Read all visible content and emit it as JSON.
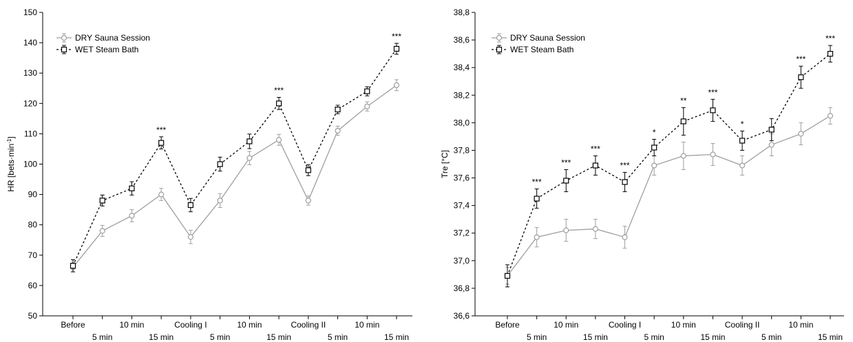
{
  "chart_data": [
    {
      "type": "line",
      "ylabel": "HR [bets·min",
      "ylabel_sup": "-1",
      "ylabel_end": "]",
      "ylim": [
        50,
        150
      ],
      "yticks": [
        50,
        60,
        70,
        80,
        90,
        100,
        110,
        120,
        130,
        140,
        150
      ],
      "ytick_labels": [
        "50",
        "60",
        "70",
        "80",
        "90",
        "100",
        "110",
        "120",
        "130",
        "140",
        "150"
      ],
      "categories": [
        "Before",
        "5 min",
        "10 min",
        "15 min",
        "Cooling I",
        "5 min",
        "10 min",
        "15 min",
        "Cooling II",
        "5 min",
        "10 min",
        "15 min"
      ],
      "grid": false,
      "legend_position": "top-left",
      "series": [
        {
          "name": "DRY Sauna Session",
          "color": "#9e9e9e",
          "line_style": "solid",
          "marker": "circle",
          "values": [
            66,
            78,
            83,
            90,
            76,
            88,
            102,
            108,
            88,
            111,
            119,
            126
          ],
          "errors": [
            1.5,
            1.8,
            2.0,
            2.0,
            2.2,
            2.3,
            2.2,
            1.8,
            1.5,
            1.5,
            1.5,
            1.8
          ]
        },
        {
          "name": "WET Steam Bath",
          "color": "#000000",
          "line_style": "dashed",
          "marker": "square",
          "values": [
            66.5,
            88,
            92,
            107,
            86.5,
            100,
            107.5,
            120,
            98,
            118,
            124,
            138
          ],
          "errors": [
            2.0,
            1.8,
            2.2,
            2.0,
            2.2,
            2.3,
            2.4,
            2.0,
            1.8,
            1.4,
            1.5,
            1.8
          ]
        }
      ],
      "annotations": [
        {
          "index": 3,
          "text": "***"
        },
        {
          "index": 7,
          "text": "***"
        },
        {
          "index": 11,
          "text": "***"
        }
      ]
    },
    {
      "type": "line",
      "ylabel": "Tre [°C]",
      "ylim": [
        36.6,
        38.8
      ],
      "yticks": [
        36.6,
        36.8,
        37.0,
        37.2,
        37.4,
        37.6,
        37.8,
        38.0,
        38.2,
        38.4,
        38.6,
        38.8
      ],
      "ytick_labels": [
        "36,6",
        "36,8",
        "37,0",
        "37,2",
        "37,4",
        "37,6",
        "37,8",
        "38,0",
        "38,2",
        "38,4",
        "38,6",
        "38,8"
      ],
      "categories": [
        "Before",
        "5 min",
        "10 min",
        "15 min",
        "Cooling I",
        "5 min",
        "10 min",
        "15 min",
        "Cooling II",
        "5 min",
        "10 min",
        "15 min"
      ],
      "grid": false,
      "legend_position": "top-left",
      "series": [
        {
          "name": "DRY Sauna Session",
          "color": "#9e9e9e",
          "line_style": "solid",
          "marker": "circle",
          "values": [
            36.89,
            37.17,
            37.22,
            37.23,
            37.17,
            37.69,
            37.76,
            37.77,
            37.69,
            37.84,
            37.92,
            38.05
          ],
          "errors": [
            0.06,
            0.07,
            0.08,
            0.07,
            0.08,
            0.07,
            0.1,
            0.08,
            0.07,
            0.08,
            0.08,
            0.06
          ]
        },
        {
          "name": "WET Steam Bath",
          "color": "#000000",
          "line_style": "dashed",
          "marker": "square",
          "values": [
            36.89,
            37.45,
            37.58,
            37.69,
            37.57,
            37.82,
            38.01,
            38.09,
            37.87,
            37.95,
            38.33,
            38.5
          ],
          "errors": [
            0.08,
            0.07,
            0.08,
            0.07,
            0.07,
            0.06,
            0.1,
            0.08,
            0.07,
            0.08,
            0.08,
            0.06
          ]
        }
      ],
      "annotations": [
        {
          "index": 1,
          "text": "***"
        },
        {
          "index": 2,
          "text": "***"
        },
        {
          "index": 3,
          "text": "***"
        },
        {
          "index": 4,
          "text": "***"
        },
        {
          "index": 5,
          "text": "*"
        },
        {
          "index": 6,
          "text": "**"
        },
        {
          "index": 7,
          "text": "***"
        },
        {
          "index": 8,
          "text": "*"
        },
        {
          "index": 10,
          "text": "***"
        },
        {
          "index": 11,
          "text": "***"
        }
      ]
    }
  ]
}
